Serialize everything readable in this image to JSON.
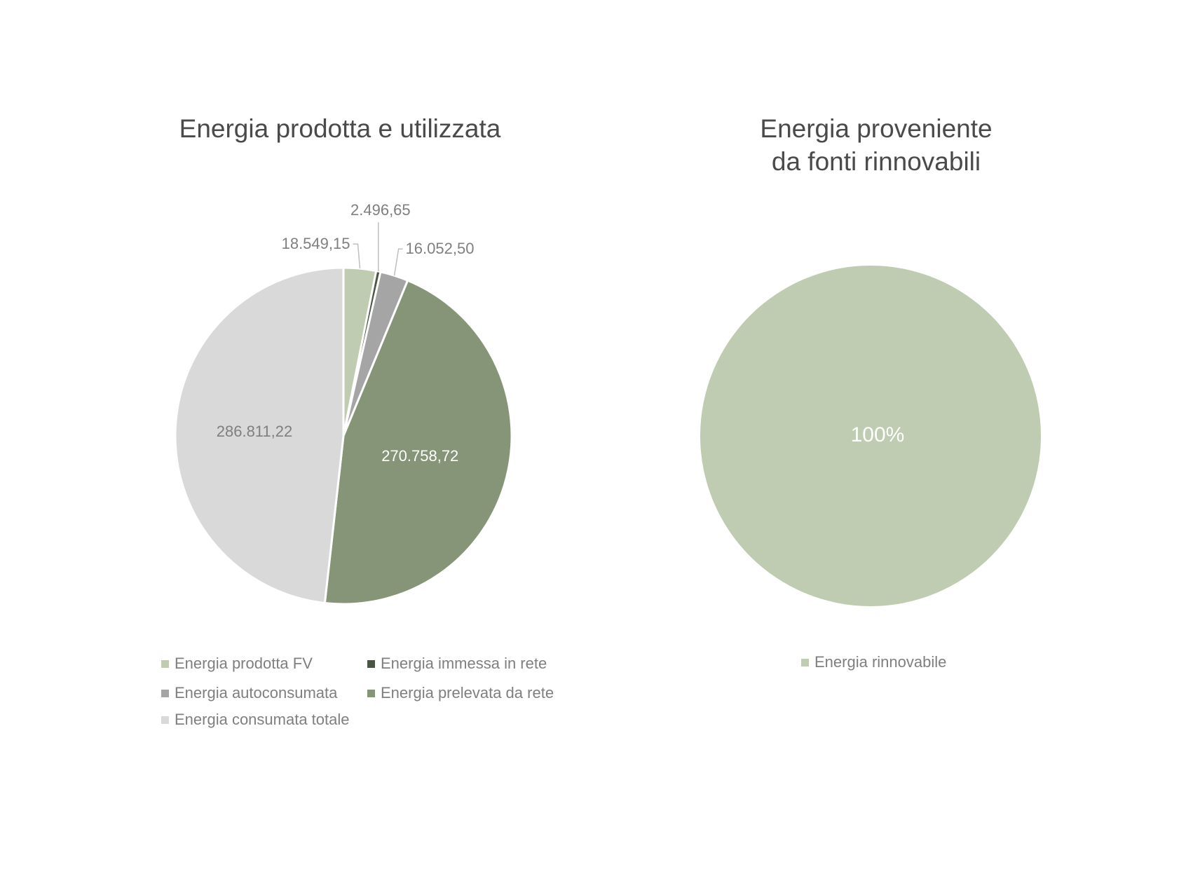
{
  "chart_data": [
    {
      "type": "pie",
      "title": "Energia prodotta e utilizzata",
      "categories": [
        "Energia prodotta FV",
        "Energia immessa in rete",
        "Energia autoconsumata",
        "Energia prelevata da rete",
        "Energia consumata totale"
      ],
      "values": [
        18549.15,
        2496.65,
        16052.5,
        270758.72,
        286811.22
      ],
      "data_labels": [
        "18.549,15",
        "2.496,65",
        "16.052,50",
        "270.758,72",
        "286.811,22"
      ],
      "colors": [
        "#bfccb1",
        "#4a5544",
        "#a5a5a5",
        "#869477",
        "#d9d9d9"
      ],
      "legend_position": "bottom"
    },
    {
      "type": "pie",
      "title_lines": [
        "Energia proveniente",
        "da fonti rinnovabili"
      ],
      "categories": [
        "Energia rinnovabile"
      ],
      "values": [
        100
      ],
      "data_labels": [
        "100%"
      ],
      "colors": [
        "#bfccb1"
      ],
      "legend_position": "bottom"
    }
  ]
}
